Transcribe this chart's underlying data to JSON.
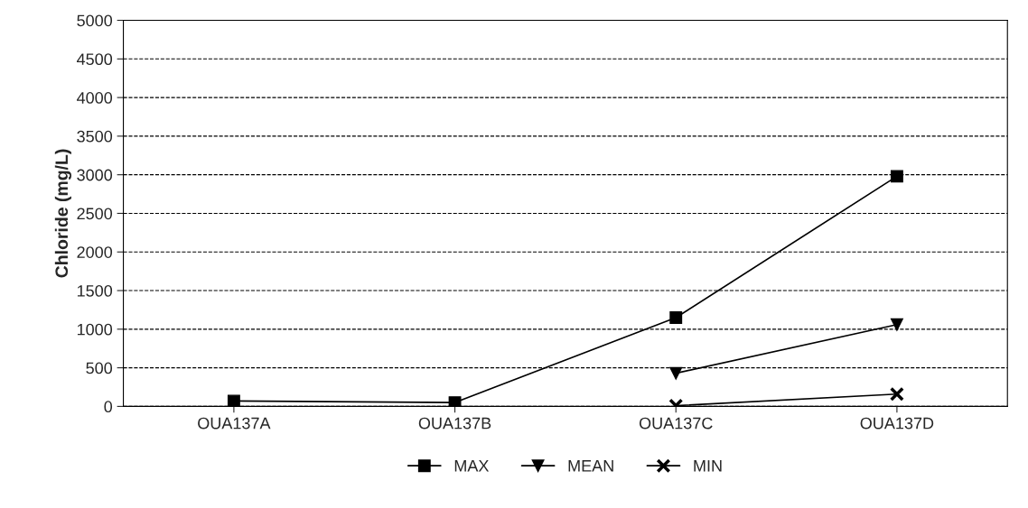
{
  "chart_data": {
    "type": "line",
    "ylabel": "Chloride (mg/L)",
    "categories": [
      "OUA137A",
      "OUA137B",
      "OUA137C",
      "OUA137D"
    ],
    "series": [
      {
        "name": "MAX",
        "color": "#000000",
        "marker": "square",
        "values": [
          70,
          50,
          1150,
          2980
        ]
      },
      {
        "name": "MEAN",
        "color": "#000000",
        "marker": "triangle",
        "values": [
          null,
          null,
          430,
          1060
        ]
      },
      {
        "name": "MIN",
        "color": "#000000",
        "marker": "cross",
        "values": [
          null,
          null,
          10,
          160
        ]
      }
    ],
    "ylim": [
      0,
      5000
    ],
    "yticks": [
      0,
      500,
      1000,
      1500,
      2000,
      2500,
      3000,
      3500,
      4000,
      4500,
      5000
    ],
    "grid": "y",
    "legend": "bottom",
    "line_style": "solid"
  }
}
